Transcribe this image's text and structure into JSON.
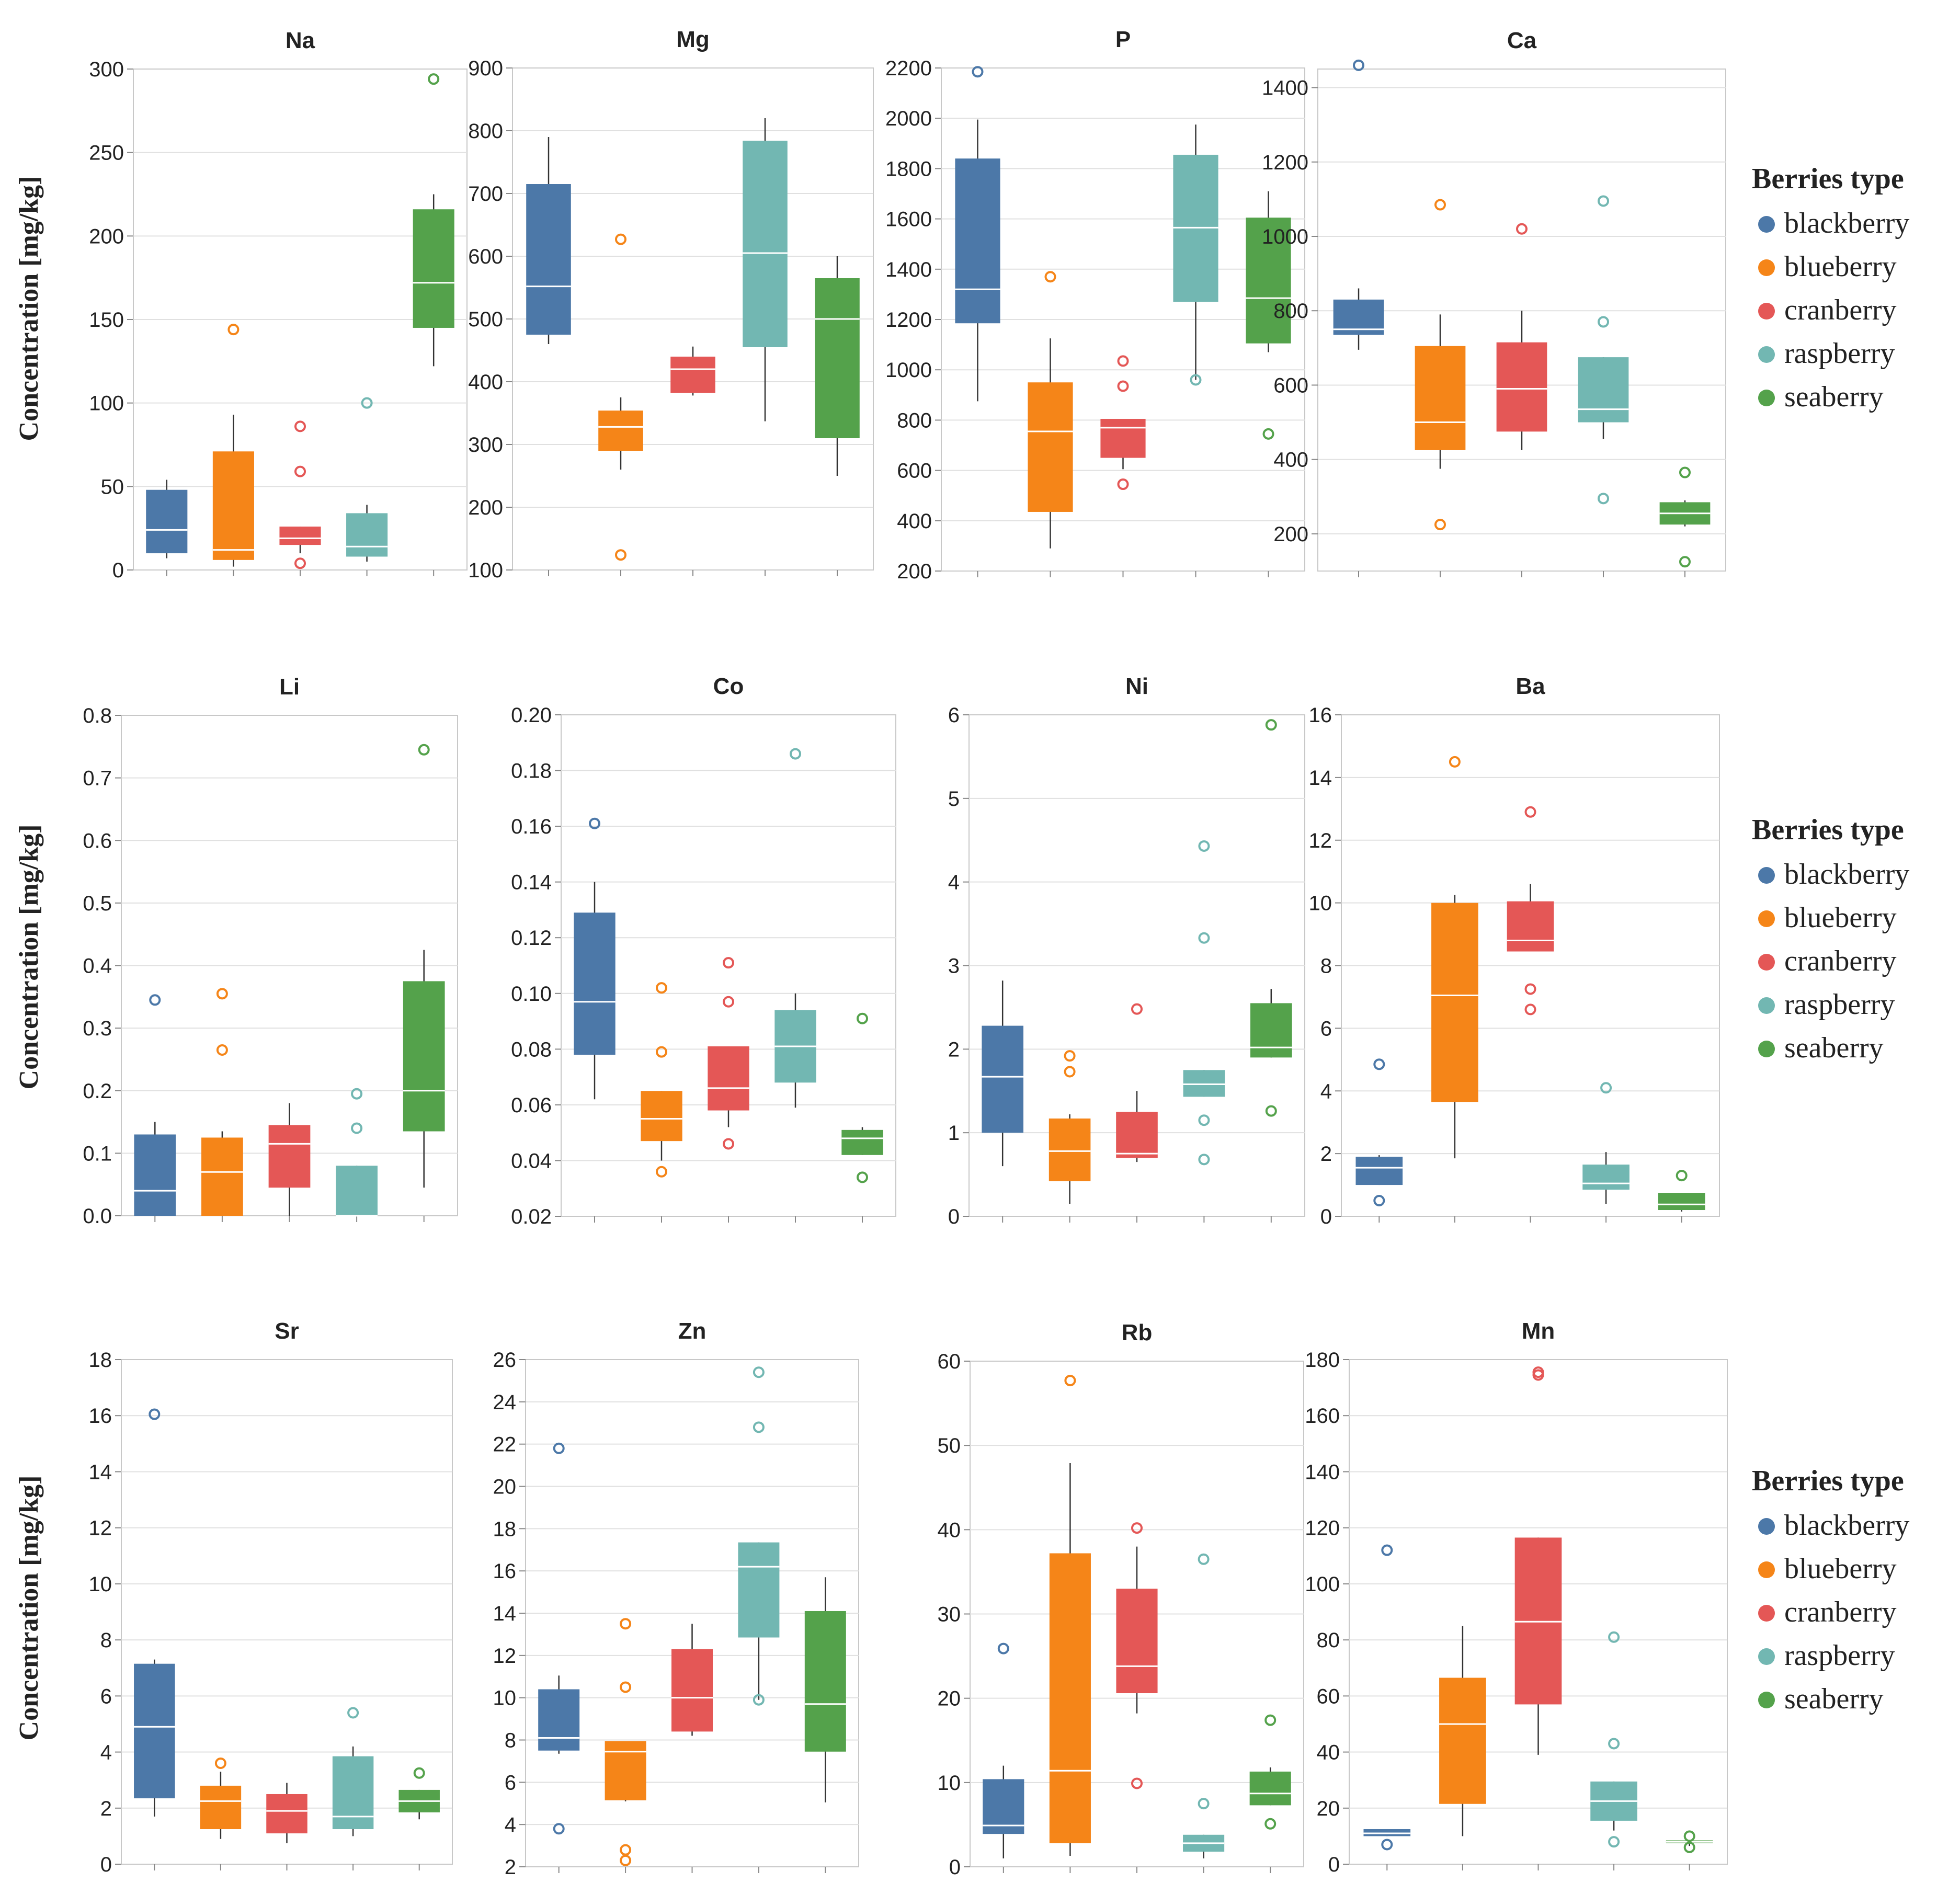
{
  "figure": {
    "y_axis_title": "Concentration [mg/kg]",
    "legend_title": "Berries type"
  },
  "colors": {
    "blackberry": "#4c78a8",
    "blueberry": "#f58518",
    "cranberry": "#e45756",
    "raspberry": "#72b7b2",
    "seaberry": "#54a24b"
  },
  "chart_data": [
    {
      "type": "box",
      "title": "Na",
      "ylabel": "Concentration [mg/kg]",
      "ylim": [
        0,
        300
      ],
      "ticks": [
        0,
        50,
        100,
        150,
        200,
        250,
        300
      ],
      "categories": [
        "blackberry",
        "blueberry",
        "cranberry",
        "raspberry",
        "seaberry"
      ],
      "series": [
        {
          "name": "blackberry",
          "min": 7,
          "q1": 10,
          "median": 24,
          "q3": 48,
          "max": 54,
          "outliers": []
        },
        {
          "name": "blueberry",
          "min": 2,
          "q1": 6,
          "median": 12,
          "q3": 71,
          "max": 93,
          "outliers": [
            144
          ]
        },
        {
          "name": "cranberry",
          "min": 10,
          "q1": 15,
          "median": 19,
          "q3": 26,
          "max": 26,
          "outliers": [
            86,
            59,
            4
          ]
        },
        {
          "name": "raspberry",
          "min": 5,
          "q1": 8,
          "median": 14,
          "q3": 34,
          "max": 39,
          "outliers": [
            100
          ]
        },
        {
          "name": "seaberry",
          "min": 122,
          "q1": 145,
          "median": 172,
          "q3": 216,
          "max": 225,
          "outliers": [
            294
          ]
        }
      ]
    },
    {
      "type": "box",
      "title": "Mg",
      "ylabel": "",
      "ylim": [
        100,
        900
      ],
      "ticks": [
        100,
        200,
        300,
        400,
        500,
        600,
        700,
        800,
        900
      ],
      "categories": [
        "blackberry",
        "blueberry",
        "cranberry",
        "raspberry",
        "seaberry"
      ],
      "series": [
        {
          "name": "blackberry",
          "min": 460,
          "q1": 475,
          "median": 552,
          "q3": 715,
          "max": 790,
          "outliers": []
        },
        {
          "name": "blueberry",
          "min": 260,
          "q1": 290,
          "median": 328,
          "q3": 354,
          "max": 375,
          "outliers": [
            627,
            124
          ]
        },
        {
          "name": "cranberry",
          "min": 378,
          "q1": 382,
          "median": 420,
          "q3": 440,
          "max": 456,
          "outliers": []
        },
        {
          "name": "raspberry",
          "min": 337,
          "q1": 455,
          "median": 605,
          "q3": 784,
          "max": 820,
          "outliers": []
        },
        {
          "name": "seaberry",
          "min": 250,
          "q1": 310,
          "median": 500,
          "q3": 565,
          "max": 600,
          "outliers": []
        }
      ]
    },
    {
      "type": "box",
      "title": "P",
      "ylabel": "",
      "ylim": [
        200,
        2200
      ],
      "ticks": [
        200,
        400,
        600,
        800,
        1000,
        1200,
        1400,
        1600,
        1800,
        2000,
        2200
      ],
      "categories": [
        "blackberry",
        "blueberry",
        "cranberry",
        "raspberry",
        "seaberry"
      ],
      "series": [
        {
          "name": "blackberry",
          "min": 875,
          "q1": 1185,
          "median": 1320,
          "q3": 1840,
          "max": 1995,
          "outliers": [
            2185
          ]
        },
        {
          "name": "blueberry",
          "min": 290,
          "q1": 435,
          "median": 755,
          "q3": 950,
          "max": 1125,
          "outliers": [
            1370
          ]
        },
        {
          "name": "cranberry",
          "min": 605,
          "q1": 650,
          "median": 770,
          "q3": 805,
          "max": 805,
          "outliers": [
            1035,
            935,
            545
          ]
        },
        {
          "name": "raspberry",
          "min": 960,
          "q1": 1270,
          "median": 1565,
          "q3": 1855,
          "max": 1975,
          "outliers": [
            960
          ]
        },
        {
          "name": "seaberry",
          "min": 1070,
          "q1": 1105,
          "median": 1285,
          "q3": 1605,
          "max": 1710,
          "outliers": [
            745
          ]
        }
      ]
    },
    {
      "type": "box",
      "title": "Ca",
      "ylabel": "",
      "ylim": [
        100,
        1450
      ],
      "ticks": [
        200,
        400,
        600,
        800,
        1000,
        1200,
        1400
      ],
      "categories": [
        "blackberry",
        "blueberry",
        "cranberry",
        "raspberry",
        "seaberry"
      ],
      "series": [
        {
          "name": "blackberry",
          "min": 695,
          "q1": 735,
          "median": 750,
          "q3": 830,
          "max": 860,
          "outliers": [
            1460
          ]
        },
        {
          "name": "blueberry",
          "min": 375,
          "q1": 425,
          "median": 500,
          "q3": 705,
          "max": 790,
          "outliers": [
            1085,
            225
          ]
        },
        {
          "name": "cranberry",
          "min": 425,
          "q1": 475,
          "median": 590,
          "q3": 715,
          "max": 800,
          "outliers": [
            1020
          ]
        },
        {
          "name": "raspberry",
          "min": 455,
          "q1": 500,
          "median": 535,
          "q3": 675,
          "max": 675,
          "outliers": [
            1095,
            770,
            295
          ]
        },
        {
          "name": "seaberry",
          "min": 220,
          "q1": 225,
          "median": 255,
          "q3": 285,
          "max": 290,
          "outliers": [
            365,
            125
          ]
        }
      ]
    },
    {
      "type": "box",
      "title": "Li",
      "ylabel": "Concentration [mg/kg]",
      "ylim": [
        0,
        0.8
      ],
      "ticks": [
        "0.0",
        "0.1",
        "0.2",
        "0.3",
        "0.4",
        "0.5",
        "0.6",
        "0.7",
        "0.8"
      ],
      "categories": [
        "blackberry",
        "blueberry",
        "cranberry",
        "raspberry",
        "seaberry"
      ],
      "series": [
        {
          "name": "blackberry",
          "min": 0.0,
          "q1": 0.0,
          "median": 0.04,
          "q3": 0.13,
          "max": 0.15,
          "outliers": [
            0.345
          ]
        },
        {
          "name": "blueberry",
          "min": 0.0,
          "q1": 0.0,
          "median": 0.07,
          "q3": 0.125,
          "max": 0.135,
          "outliers": [
            0.355,
            0.265
          ]
        },
        {
          "name": "cranberry",
          "min": 0.0,
          "q1": 0.045,
          "median": 0.115,
          "q3": 0.145,
          "max": 0.18,
          "outliers": []
        },
        {
          "name": "raspberry",
          "min": 0.0,
          "q1": 0.0,
          "median": 0.0,
          "q3": 0.08,
          "max": 0.08,
          "outliers": [
            0.195,
            0.14
          ]
        },
        {
          "name": "seaberry",
          "min": 0.045,
          "q1": 0.135,
          "median": 0.2,
          "q3": 0.375,
          "max": 0.425,
          "outliers": [
            0.745
          ]
        }
      ]
    },
    {
      "type": "box",
      "title": "Co",
      "ylabel": "",
      "ylim": [
        0.02,
        0.2
      ],
      "ticks": [
        "0.02",
        "0.04",
        "0.06",
        "0.08",
        "0.10",
        "0.12",
        "0.14",
        "0.16",
        "0.18",
        "0.20"
      ],
      "categories": [
        "blackberry",
        "blueberry",
        "cranberry",
        "raspberry",
        "seaberry"
      ],
      "series": [
        {
          "name": "blackberry",
          "min": 0.062,
          "q1": 0.078,
          "median": 0.097,
          "q3": 0.129,
          "max": 0.14,
          "outliers": [
            0.161
          ]
        },
        {
          "name": "blueberry",
          "min": 0.04,
          "q1": 0.047,
          "median": 0.055,
          "q3": 0.065,
          "max": 0.065,
          "outliers": [
            0.102,
            0.079,
            0.036
          ]
        },
        {
          "name": "cranberry",
          "min": 0.052,
          "q1": 0.058,
          "median": 0.066,
          "q3": 0.081,
          "max": 0.081,
          "outliers": [
            0.111,
            0.097,
            0.046
          ]
        },
        {
          "name": "raspberry",
          "min": 0.059,
          "q1": 0.068,
          "median": 0.081,
          "q3": 0.094,
          "max": 0.1,
          "outliers": [
            0.186
          ]
        },
        {
          "name": "seaberry",
          "min": 0.042,
          "q1": 0.042,
          "median": 0.048,
          "q3": 0.051,
          "max": 0.052,
          "outliers": [
            0.091,
            0.034
          ]
        }
      ]
    },
    {
      "type": "box",
      "title": "Ni",
      "ylabel": "",
      "ylim": [
        0,
        6
      ],
      "ticks": [
        0,
        1,
        2,
        3,
        4,
        5,
        6
      ],
      "categories": [
        "blackberry",
        "blueberry",
        "cranberry",
        "raspberry",
        "seaberry"
      ],
      "series": [
        {
          "name": "blackberry",
          "min": 0.6,
          "q1": 1.0,
          "median": 1.67,
          "q3": 2.28,
          "max": 2.82,
          "outliers": []
        },
        {
          "name": "blueberry",
          "min": 0.15,
          "q1": 0.42,
          "median": 0.78,
          "q3": 1.17,
          "max": 1.22,
          "outliers": [
            1.92,
            1.73
          ]
        },
        {
          "name": "cranberry",
          "min": 0.65,
          "q1": 0.7,
          "median": 0.75,
          "q3": 1.25,
          "max": 1.5,
          "outliers": [
            2.48
          ]
        },
        {
          "name": "raspberry",
          "min": 1.43,
          "q1": 1.43,
          "median": 1.58,
          "q3": 1.75,
          "max": 1.75,
          "outliers": [
            4.43,
            3.33,
            1.15,
            0.68
          ]
        },
        {
          "name": "seaberry",
          "min": 1.9,
          "q1": 1.9,
          "median": 2.02,
          "q3": 2.55,
          "max": 2.72,
          "outliers": [
            5.88,
            1.26
          ]
        }
      ]
    },
    {
      "type": "box",
      "title": "Ba",
      "ylabel": "",
      "ylim": [
        0,
        16
      ],
      "ticks": [
        0,
        2,
        4,
        6,
        8,
        10,
        12,
        14,
        16
      ],
      "categories": [
        "blackberry",
        "blueberry",
        "cranberry",
        "raspberry",
        "seaberry"
      ],
      "series": [
        {
          "name": "blackberry",
          "min": 1.0,
          "q1": 1.0,
          "median": 1.55,
          "q3": 1.9,
          "max": 1.95,
          "outliers": [
            4.85,
            0.5
          ]
        },
        {
          "name": "blueberry",
          "min": 1.85,
          "q1": 3.65,
          "median": 7.05,
          "q3": 10.0,
          "max": 10.25,
          "outliers": [
            14.5
          ]
        },
        {
          "name": "cranberry",
          "min": 8.45,
          "q1": 8.45,
          "median": 8.8,
          "q3": 10.05,
          "max": 10.6,
          "outliers": [
            12.9,
            7.25,
            6.6
          ]
        },
        {
          "name": "raspberry",
          "min": 0.4,
          "q1": 0.85,
          "median": 1.05,
          "q3": 1.65,
          "max": 2.05,
          "outliers": [
            4.1
          ]
        },
        {
          "name": "seaberry",
          "min": 0.15,
          "q1": 0.2,
          "median": 0.38,
          "q3": 0.75,
          "max": 0.75,
          "outliers": [
            1.3
          ]
        }
      ]
    },
    {
      "type": "box",
      "title": "Sr",
      "ylabel": "Concentration [mg/kg]",
      "ylim": [
        0,
        18
      ],
      "ticks": [
        0,
        2,
        4,
        6,
        8,
        10,
        12,
        14,
        16,
        18
      ],
      "categories": [
        "blackberry",
        "blueberry",
        "cranberry",
        "raspberry",
        "seaberry"
      ],
      "series": [
        {
          "name": "blackberry",
          "min": 1.7,
          "q1": 2.35,
          "median": 4.9,
          "q3": 7.15,
          "max": 7.3,
          "outliers": [
            16.05
          ]
        },
        {
          "name": "blueberry",
          "min": 0.9,
          "q1": 1.25,
          "median": 2.25,
          "q3": 2.8,
          "max": 3.3,
          "outliers": [
            3.6
          ]
        },
        {
          "name": "cranberry",
          "min": 0.75,
          "q1": 1.1,
          "median": 1.9,
          "q3": 2.5,
          "max": 2.9,
          "outliers": []
        },
        {
          "name": "raspberry",
          "min": 1.0,
          "q1": 1.25,
          "median": 1.7,
          "q3": 3.85,
          "max": 4.2,
          "outliers": [
            5.4
          ]
        },
        {
          "name": "seaberry",
          "min": 1.6,
          "q1": 1.85,
          "median": 2.25,
          "q3": 2.65,
          "max": 2.65,
          "outliers": [
            3.25
          ]
        }
      ]
    },
    {
      "type": "box",
      "title": "Zn",
      "ylabel": "",
      "ylim": [
        2,
        26
      ],
      "ticks": [
        2,
        4,
        6,
        8,
        10,
        12,
        14,
        16,
        18,
        20,
        22,
        24,
        26
      ],
      "categories": [
        "blackberry",
        "blueberry",
        "cranberry",
        "raspberry",
        "seaberry"
      ],
      "series": [
        {
          "name": "blackberry",
          "min": 7.35,
          "q1": 7.5,
          "median": 8.1,
          "q3": 10.4,
          "max": 11.05,
          "outliers": [
            21.8,
            3.8
          ]
        },
        {
          "name": "blueberry",
          "min": 5.1,
          "q1": 5.15,
          "median": 7.45,
          "q3": 7.95,
          "max": 7.95,
          "outliers": [
            13.5,
            10.5,
            2.8,
            2.3
          ]
        },
        {
          "name": "cranberry",
          "min": 8.2,
          "q1": 8.4,
          "median": 10.0,
          "q3": 12.3,
          "max": 13.5,
          "outliers": []
        },
        {
          "name": "raspberry",
          "min": 9.9,
          "q1": 12.85,
          "median": 16.2,
          "q3": 17.35,
          "max": 17.35,
          "outliers": [
            25.4,
            22.8,
            9.9
          ]
        },
        {
          "name": "seaberry",
          "min": 5.05,
          "q1": 7.45,
          "median": 9.7,
          "q3": 14.1,
          "max": 15.7,
          "outliers": []
        }
      ]
    },
    {
      "type": "box",
      "title": "Rb",
      "ylabel": "",
      "ylim": [
        0,
        60
      ],
      "ticks": [
        0,
        10,
        20,
        30,
        40,
        50,
        60
      ],
      "categories": [
        "blackberry",
        "blueberry",
        "cranberry",
        "raspberry",
        "seaberry"
      ],
      "series": [
        {
          "name": "blackberry",
          "min": 1.0,
          "q1": 3.9,
          "median": 4.9,
          "q3": 10.4,
          "max": 12.0,
          "outliers": [
            25.9
          ]
        },
        {
          "name": "blueberry",
          "min": 1.3,
          "q1": 2.8,
          "median": 11.4,
          "q3": 37.2,
          "max": 47.9,
          "outliers": [
            57.7
          ]
        },
        {
          "name": "cranberry",
          "min": 18.2,
          "q1": 20.6,
          "median": 23.8,
          "q3": 33.0,
          "max": 38.0,
          "outliers": [
            40.2,
            9.9
          ]
        },
        {
          "name": "raspberry",
          "min": 1.0,
          "q1": 1.8,
          "median": 2.8,
          "q3": 3.8,
          "max": 3.8,
          "outliers": [
            36.5,
            7.5
          ]
        },
        {
          "name": "seaberry",
          "min": 7.3,
          "q1": 7.3,
          "median": 8.7,
          "q3": 11.3,
          "max": 11.8,
          "outliers": [
            17.4,
            5.1
          ]
        }
      ]
    },
    {
      "type": "box",
      "title": "Mn",
      "ylabel": "",
      "ylim": [
        0,
        180
      ],
      "ticks": [
        0,
        20,
        40,
        60,
        80,
        100,
        120,
        140,
        160,
        180
      ],
      "categories": [
        "blackberry",
        "blueberry",
        "cranberry",
        "raspberry",
        "seaberry"
      ],
      "series": [
        {
          "name": "blackberry",
          "min": 10.0,
          "q1": 10.0,
          "median": 11.0,
          "q3": 12.5,
          "max": 12.5,
          "outliers": [
            112,
            7
          ]
        },
        {
          "name": "blueberry",
          "min": 10.0,
          "q1": 21.5,
          "median": 50.0,
          "q3": 66.5,
          "max": 85.0,
          "outliers": []
        },
        {
          "name": "cranberry",
          "min": 39.0,
          "q1": 57.0,
          "median": 86.5,
          "q3": 116.5,
          "max": 116.5,
          "outliers": [
            175.5,
            174.5
          ]
        },
        {
          "name": "raspberry",
          "min": 12.0,
          "q1": 15.5,
          "median": 22.5,
          "q3": 29.5,
          "max": 29.5,
          "outliers": [
            81,
            43,
            8
          ]
        },
        {
          "name": "seaberry",
          "min": 6.5,
          "q1": 7.5,
          "median": 8.0,
          "q3": 8.5,
          "max": 8.5,
          "outliers": [
            10,
            6
          ]
        }
      ]
    }
  ]
}
